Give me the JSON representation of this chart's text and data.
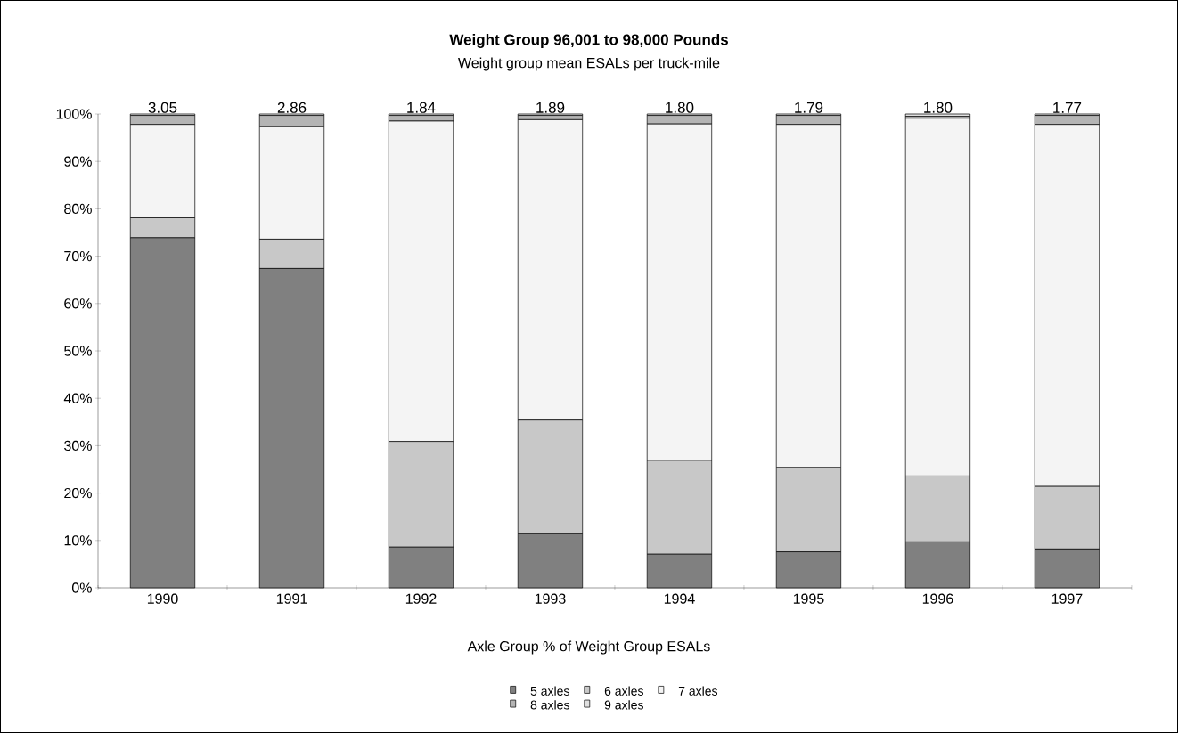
{
  "chart_data": {
    "type": "bar",
    "stacked": true,
    "title": "Weight Group 96,001 to 98,000 Pounds",
    "subtitle": "Weight group mean ESALs per truck-mile",
    "categories": [
      "1990",
      "1991",
      "1992",
      "1993",
      "1994",
      "1995",
      "1996",
      "1997"
    ],
    "series": [
      {
        "name": "5 axles",
        "color": "#808080",
        "values": [
          73.9,
          67.4,
          8.6,
          11.4,
          7.1,
          7.6,
          9.7,
          8.2
        ]
      },
      {
        "name": "6 axles",
        "color": "#c8c8c8",
        "values": [
          4.2,
          6.2,
          22.3,
          24.0,
          19.8,
          17.8,
          13.9,
          13.2
        ]
      },
      {
        "name": "7 axles",
        "color": "#f4f4f4",
        "values": [
          19.7,
          23.7,
          67.6,
          63.4,
          71.0,
          72.4,
          75.5,
          76.4
        ]
      },
      {
        "name": "8 axles",
        "color": "#b4b4b4",
        "values": [
          1.9,
          2.4,
          1.2,
          0.9,
          1.8,
          1.9,
          0.4,
          1.9
        ]
      },
      {
        "name": "9 axles",
        "color": "#e0e0e0",
        "values": [
          0.3,
          0.3,
          0.3,
          0.3,
          0.3,
          0.3,
          0.5,
          0.3
        ]
      }
    ],
    "ylim": [
      0,
      100
    ],
    "yticks": [
      {
        "value": 0,
        "label": "0%"
      },
      {
        "value": 10,
        "label": "10%"
      },
      {
        "value": 20,
        "label": "20%"
      },
      {
        "value": 30,
        "label": "30%"
      },
      {
        "value": 40,
        "label": "40%"
      },
      {
        "value": 50,
        "label": "50%"
      },
      {
        "value": 60,
        "label": "60%"
      },
      {
        "value": 70,
        "label": "70%"
      },
      {
        "value": 80,
        "label": "80%"
      },
      {
        "value": 90,
        "label": "90%"
      },
      {
        "value": 100,
        "label": "100%"
      }
    ],
    "legend": "bottom",
    "legend_title": "Axle Group % of Weight Group ESALs",
    "annotations": [
      {
        "text": "3.05",
        "x": "1990",
        "y": 100
      },
      {
        "text": "2.86",
        "x": "1991",
        "y": 100
      },
      {
        "text": "1.84",
        "x": "1992",
        "y": 100
      },
      {
        "text": "1.89",
        "x": "1993",
        "y": 100
      },
      {
        "text": "1.80",
        "x": "1994",
        "y": 100
      },
      {
        "text": "1.79",
        "x": "1995",
        "y": 100
      },
      {
        "text": "1.80",
        "x": "1996",
        "y": 100
      },
      {
        "text": "1.77",
        "x": "1997",
        "y": 100
      }
    ]
  }
}
